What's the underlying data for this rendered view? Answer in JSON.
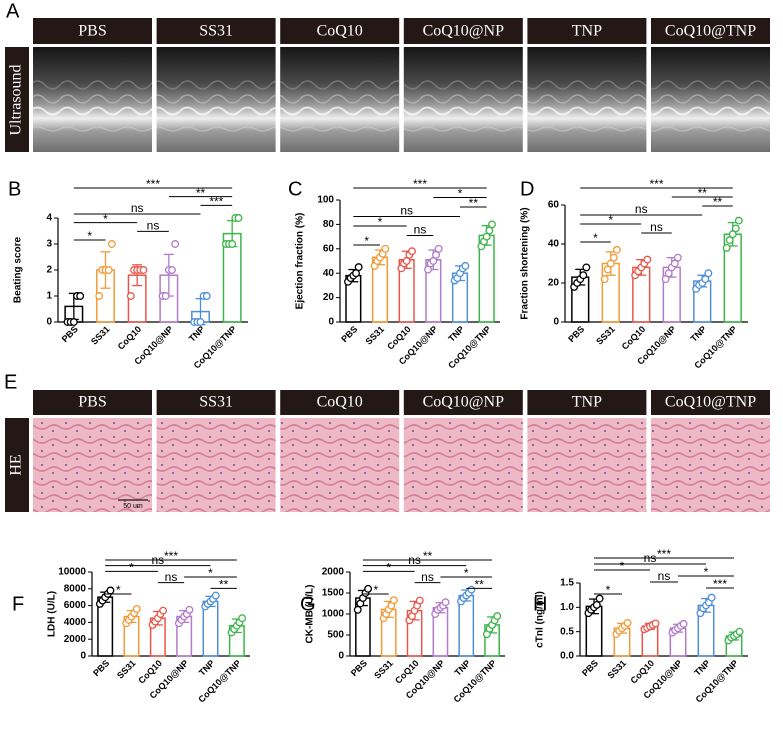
{
  "ultrasound": {
    "letter": "A",
    "label": "Ultrasound",
    "groups": [
      "PBS",
      "SS31",
      "CoQ10",
      "CoQ10@NP",
      "TNP",
      "CoQ10@TNP"
    ]
  },
  "histology": {
    "letter": "E",
    "label": "HE",
    "scale_bar": "50 um",
    "groups": [
      "PBS",
      "SS31",
      "CoQ10",
      "CoQ10@NP",
      "TNP",
      "CoQ10@TNP"
    ]
  },
  "chart_data": [
    {
      "type": "bar",
      "label": "B",
      "ylabel": "Beating score",
      "categories": [
        "PBS",
        "SS31",
        "CoQ10",
        "CoQ10@NP",
        "TNP",
        "CoQ10@TNP"
      ],
      "colors": [
        "#000000",
        "#f39a36",
        "#e8564a",
        "#b27ac8",
        "#4f8fd8",
        "#3cb54a"
      ],
      "values": [
        0.6,
        2.0,
        1.8,
        1.8,
        0.4,
        3.4
      ],
      "errors": [
        0.5,
        0.7,
        0.4,
        0.8,
        0.5,
        0.5
      ],
      "points": [
        [
          0,
          0,
          0,
          1,
          1
        ],
        [
          1,
          2,
          2,
          2,
          3
        ],
        [
          1,
          2,
          2,
          2,
          2
        ],
        [
          1,
          1,
          2,
          2,
          3
        ],
        [
          0,
          0,
          0,
          1,
          1
        ],
        [
          3,
          3,
          3,
          4,
          4
        ]
      ],
      "ylim": [
        0,
        4
      ],
      "yticks": [
        0,
        1,
        2,
        3,
        4
      ],
      "comparisons": [
        {
          "from": 0,
          "to": 5,
          "label": "***"
        },
        {
          "from": 3,
          "to": 5,
          "label": "**"
        },
        {
          "from": 4,
          "to": 5,
          "label": "***"
        },
        {
          "from": 0,
          "to": 4,
          "label": "ns"
        },
        {
          "from": 0,
          "to": 2,
          "label": "*"
        },
        {
          "from": 2,
          "to": 3,
          "label": "ns"
        },
        {
          "from": 0,
          "to": 1,
          "label": "*"
        }
      ]
    },
    {
      "type": "bar",
      "label": "C",
      "ylabel": "Ejection fraction (%)",
      "categories": [
        "PBS",
        "SS31",
        "CoQ10",
        "CoQ10@NP",
        "TNP",
        "CoQ10@TNP"
      ],
      "colors": [
        "#000000",
        "#f39a36",
        "#e8564a",
        "#b27ac8",
        "#4f8fd8",
        "#3cb54a"
      ],
      "values": [
        38,
        53,
        51,
        51,
        40,
        71
      ],
      "errors": [
        5,
        6,
        7,
        8,
        6,
        8
      ],
      "points": [
        [
          33,
          36,
          38,
          40,
          45
        ],
        [
          46,
          50,
          53,
          56,
          60
        ],
        [
          44,
          48,
          50,
          55,
          58
        ],
        [
          43,
          48,
          50,
          55,
          60
        ],
        [
          34,
          36,
          40,
          44,
          46
        ],
        [
          62,
          66,
          70,
          75,
          80
        ]
      ],
      "ylim": [
        0,
        100
      ],
      "yticks": [
        0,
        20,
        40,
        60,
        80,
        100
      ],
      "comparisons": [
        {
          "from": 0,
          "to": 5,
          "label": "***"
        },
        {
          "from": 3,
          "to": 5,
          "label": "*"
        },
        {
          "from": 4,
          "to": 5,
          "label": "**"
        },
        {
          "from": 0,
          "to": 4,
          "label": "ns"
        },
        {
          "from": 0,
          "to": 2,
          "label": "*"
        },
        {
          "from": 2,
          "to": 3,
          "label": "ns"
        },
        {
          "from": 0,
          "to": 1,
          "label": "*"
        }
      ]
    },
    {
      "type": "bar",
      "label": "D",
      "ylabel": "Fraction shortening (%)",
      "categories": [
        "PBS",
        "SS31",
        "CoQ10",
        "CoQ10@NP",
        "TNP",
        "CoQ10@TNP"
      ],
      "colors": [
        "#000000",
        "#f39a36",
        "#e8564a",
        "#b27ac8",
        "#4f8fd8",
        "#3cb54a"
      ],
      "values": [
        23,
        30,
        28,
        28,
        21,
        45
      ],
      "errors": [
        4,
        6,
        4,
        5,
        3,
        6
      ],
      "points": [
        [
          18,
          20,
          22,
          24,
          28
        ],
        [
          22,
          27,
          30,
          33,
          37
        ],
        [
          24,
          26,
          28,
          30,
          32
        ],
        [
          22,
          25,
          28,
          30,
          33
        ],
        [
          17,
          19,
          20,
          22,
          25
        ],
        [
          38,
          42,
          45,
          48,
          52
        ]
      ],
      "ylim": [
        0,
        60
      ],
      "yticks": [
        0,
        20,
        40,
        60
      ],
      "comparisons": [
        {
          "from": 0,
          "to": 5,
          "label": "***"
        },
        {
          "from": 3,
          "to": 5,
          "label": "**"
        },
        {
          "from": 4,
          "to": 5,
          "label": "**"
        },
        {
          "from": 0,
          "to": 4,
          "label": "ns"
        },
        {
          "from": 0,
          "to": 2,
          "label": "*"
        },
        {
          "from": 2,
          "to": 3,
          "label": "ns"
        },
        {
          "from": 0,
          "to": 1,
          "label": "*"
        }
      ]
    },
    {
      "type": "bar",
      "label": "F",
      "ylabel": "LDH (U/L)",
      "categories": [
        "PBS",
        "SS31",
        "CoQ10",
        "CoQ10@NP",
        "TNP",
        "CoQ10@TNP"
      ],
      "colors": [
        "#000000",
        "#f39a36",
        "#e8564a",
        "#b27ac8",
        "#4f8fd8",
        "#3cb54a"
      ],
      "values": [
        7000,
        4700,
        4500,
        4700,
        6500,
        3600
      ],
      "errors": [
        600,
        700,
        800,
        700,
        600,
        800
      ],
      "points": [
        [
          6200,
          6600,
          7000,
          7400,
          7800
        ],
        [
          3900,
          4300,
          4700,
          5100,
          5600
        ],
        [
          3700,
          4100,
          4500,
          5000,
          5400
        ],
        [
          3900,
          4300,
          4700,
          5000,
          5500
        ],
        [
          5900,
          6200,
          6500,
          6800,
          7200
        ],
        [
          2800,
          3200,
          3600,
          4000,
          4500
        ]
      ],
      "ylim": [
        0,
        10000
      ],
      "yticks": [
        0,
        2000,
        4000,
        6000,
        8000,
        10000
      ],
      "comparisons": [
        {
          "from": 0,
          "to": 5,
          "label": "***"
        },
        {
          "from": 0,
          "to": 4,
          "label": "ns"
        },
        {
          "from": 0,
          "to": 2,
          "label": "*"
        },
        {
          "from": 3,
          "to": 5,
          "label": "*"
        },
        {
          "from": 2,
          "to": 3,
          "label": "ns"
        },
        {
          "from": 4,
          "to": 5,
          "label": "**"
        },
        {
          "from": 0,
          "to": 1,
          "label": "*"
        }
      ]
    },
    {
      "type": "bar",
      "label": "G",
      "ylabel": "CK-MB (U/L)",
      "categories": [
        "PBS",
        "SS31",
        "CoQ10",
        "CoQ10@NP",
        "TNP",
        "CoQ10@TNP"
      ],
      "colors": [
        "#000000",
        "#f39a36",
        "#e8564a",
        "#b27ac8",
        "#4f8fd8",
        "#3cb54a"
      ],
      "values": [
        1380,
        1110,
        1080,
        1150,
        1440,
        740
      ],
      "errors": [
        180,
        190,
        220,
        120,
        130,
        190
      ],
      "points": [
        [
          1100,
          1250,
          1380,
          1500,
          1600
        ],
        [
          900,
          1000,
          1110,
          1200,
          1330
        ],
        [
          850,
          950,
          1080,
          1200,
          1320
        ],
        [
          1000,
          1100,
          1150,
          1200,
          1280
        ],
        [
          1300,
          1380,
          1440,
          1500,
          1580
        ],
        [
          520,
          650,
          740,
          850,
          950
        ]
      ],
      "ylim": [
        0,
        2000
      ],
      "yticks": [
        0,
        500,
        1000,
        1500,
        2000
      ],
      "comparisons": [
        {
          "from": 0,
          "to": 5,
          "label": "**"
        },
        {
          "from": 0,
          "to": 4,
          "label": "ns"
        },
        {
          "from": 0,
          "to": 2,
          "label": "*"
        },
        {
          "from": 3,
          "to": 5,
          "label": "*"
        },
        {
          "from": 2,
          "to": 3,
          "label": "ns"
        },
        {
          "from": 4,
          "to": 5,
          "label": "**"
        },
        {
          "from": 0,
          "to": 1,
          "label": "*"
        }
      ]
    },
    {
      "type": "bar",
      "label": "H",
      "ylabel": "cTnI (ng/ml)",
      "categories": [
        "PBS",
        "SS31",
        "CoQ10",
        "CoQ10@NP",
        "TNP",
        "CoQ10@TNP"
      ],
      "colors": [
        "#000000",
        "#f39a36",
        "#e8564a",
        "#b27ac8",
        "#4f8fd8",
        "#3cb54a"
      ],
      "values": [
        1.02,
        0.57,
        0.61,
        0.57,
        1.04,
        0.41
      ],
      "errors": [
        0.15,
        0.1,
        0.06,
        0.08,
        0.14,
        0.08
      ],
      "points": [
        [
          0.88,
          0.95,
          1.0,
          1.05,
          1.18
        ],
        [
          0.45,
          0.52,
          0.57,
          0.62,
          0.68
        ],
        [
          0.55,
          0.58,
          0.61,
          0.64,
          0.67
        ],
        [
          0.48,
          0.53,
          0.57,
          0.62,
          0.66
        ],
        [
          0.88,
          0.98,
          1.04,
          1.1,
          1.2
        ],
        [
          0.32,
          0.38,
          0.41,
          0.45,
          0.5
        ]
      ],
      "ylim": [
        0,
        1.5
      ],
      "yticks": [
        {
          "value": 0,
          "label": "0.0"
        },
        0.5,
        {
          "value": 1,
          "label": "1.0"
        },
        1.5
      ],
      "comparisons": [
        {
          "from": 0,
          "to": 5,
          "label": "***"
        },
        {
          "from": 0,
          "to": 4,
          "label": "ns"
        },
        {
          "from": 0,
          "to": 2,
          "label": "*"
        },
        {
          "from": 3,
          "to": 5,
          "label": "*"
        },
        {
          "from": 2,
          "to": 3,
          "label": "ns"
        },
        {
          "from": 4,
          "to": 5,
          "label": "***"
        },
        {
          "from": 0,
          "to": 1,
          "label": "*"
        }
      ]
    }
  ]
}
